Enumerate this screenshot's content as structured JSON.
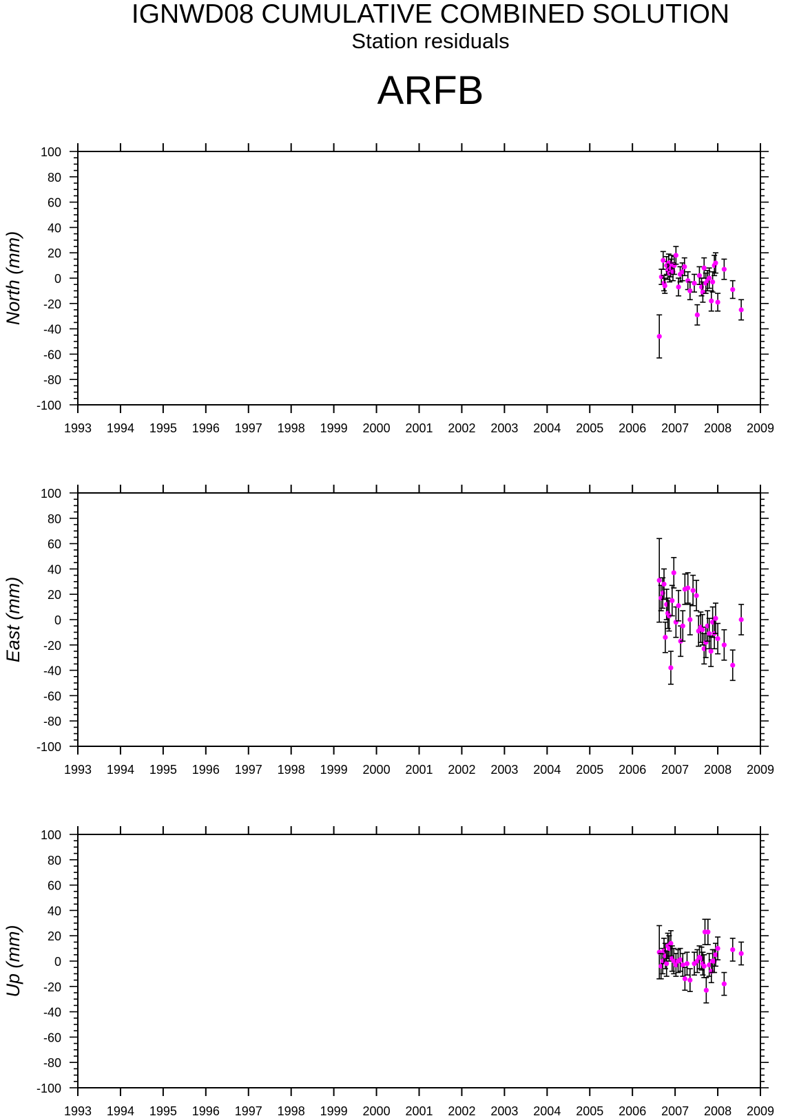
{
  "header": {
    "title": "IGNWD08 CUMULATIVE COMBINED SOLUTION",
    "subtitle": "Station residuals",
    "station": "ARFB"
  },
  "colors": {
    "point": "#ff00ff",
    "errorbar": "#000000",
    "axis": "#000000"
  },
  "chart_data": [
    {
      "type": "scatter",
      "panel": "north",
      "title": "",
      "xlabel": "",
      "ylabel": "North (mm)",
      "xlim": [
        1993,
        2009
      ],
      "ylim": [
        -100,
        100
      ],
      "x_ticks": [
        "1993",
        "1994",
        "1995",
        "1996",
        "1997",
        "1998",
        "1999",
        "2000",
        "2001",
        "2002",
        "2003",
        "2004",
        "2005",
        "2006",
        "2007",
        "2008",
        "2009"
      ],
      "y_ticks": [
        "100",
        "80",
        "60",
        "40",
        "20",
        "0",
        "-20",
        "-40",
        "-60",
        "-80",
        "-100"
      ],
      "grid": false,
      "series": [
        {
          "x": [
            2006.63,
            2006.68,
            2006.72,
            2006.74,
            2006.76,
            2006.8,
            2006.83,
            2006.85,
            2006.87,
            2006.9,
            2006.92,
            2006.95,
            2006.98,
            2007.02,
            2007.08,
            2007.12,
            2007.17,
            2007.22,
            2007.3,
            2007.35,
            2007.45,
            2007.52,
            2007.57,
            2007.62,
            2007.65,
            2007.68,
            2007.72,
            2007.76,
            2007.8,
            2007.85,
            2007.88,
            2007.92,
            2007.95,
            2008.0,
            2008.15,
            2008.35,
            2008.55
          ],
          "y": [
            -46,
            1,
            14,
            -4,
            -6,
            10,
            6,
            12,
            4,
            8,
            11,
            5,
            10,
            18,
            -7,
            3,
            5,
            9,
            -2,
            -10,
            -4,
            -29,
            2,
            -7,
            -11,
            8,
            -4,
            -2,
            0,
            -18,
            -3,
            10,
            12,
            -19,
            7,
            -9,
            -25
          ],
          "err": [
            17,
            6,
            7,
            6,
            6,
            7,
            7,
            7,
            7,
            7,
            7,
            7,
            7,
            7,
            7,
            6,
            7,
            7,
            7,
            7,
            7,
            8,
            7,
            7,
            8,
            8,
            8,
            8,
            8,
            8,
            8,
            8,
            8,
            7,
            8,
            7,
            8
          ]
        }
      ]
    },
    {
      "type": "scatter",
      "panel": "east",
      "title": "",
      "xlabel": "",
      "ylabel": "East (mm)",
      "xlim": [
        1993,
        2009
      ],
      "ylim": [
        -100,
        100
      ],
      "x_ticks": [
        "1993",
        "1994",
        "1995",
        "1996",
        "1997",
        "1998",
        "1999",
        "2000",
        "2001",
        "2002",
        "2003",
        "2004",
        "2005",
        "2006",
        "2007",
        "2008",
        "2009"
      ],
      "y_ticks": [
        "100",
        "80",
        "60",
        "40",
        "20",
        "0",
        "-20",
        "-40",
        "-60",
        "-80",
        "-100"
      ],
      "grid": false,
      "series": [
        {
          "x": [
            2006.63,
            2006.67,
            2006.71,
            2006.74,
            2006.77,
            2006.8,
            2006.83,
            2006.86,
            2006.9,
            2006.93,
            2006.97,
            2007.02,
            2007.08,
            2007.13,
            2007.18,
            2007.23,
            2007.3,
            2007.35,
            2007.42,
            2007.5,
            2007.55,
            2007.6,
            2007.64,
            2007.68,
            2007.72,
            2007.76,
            2007.8,
            2007.84,
            2007.88,
            2007.92,
            2007.95,
            2008.0,
            2008.15,
            2008.35,
            2008.55
          ],
          "y": [
            31,
            17,
            21,
            28,
            -14,
            12,
            5,
            3,
            -38,
            15,
            37,
            -2,
            11,
            -17,
            -5,
            24,
            25,
            0,
            23,
            19,
            -9,
            -6,
            -8,
            -23,
            -18,
            -5,
            -11,
            -25,
            -2,
            -11,
            1,
            -15,
            -20,
            -36,
            0
          ],
          "err": [
            33,
            10,
            12,
            12,
            12,
            12,
            12,
            12,
            13,
            12,
            12,
            12,
            12,
            12,
            12,
            12,
            12,
            12,
            12,
            12,
            12,
            12,
            12,
            12,
            12,
            12,
            12,
            12,
            12,
            12,
            12,
            12,
            12,
            12,
            12
          ]
        }
      ]
    },
    {
      "type": "scatter",
      "panel": "up",
      "title": "",
      "xlabel": "",
      "ylabel": "Up (mm)",
      "xlim": [
        1993,
        2009
      ],
      "ylim": [
        -100,
        100
      ],
      "x_ticks": [
        "1993",
        "1994",
        "1995",
        "1996",
        "1997",
        "1998",
        "1999",
        "2000",
        "2001",
        "2002",
        "2003",
        "2004",
        "2005",
        "2006",
        "2007",
        "2008",
        "2009"
      ],
      "y_ticks": [
        "100",
        "80",
        "60",
        "40",
        "20",
        "0",
        "-20",
        "-40",
        "-60",
        "-80",
        "-100"
      ],
      "grid": false,
      "series": [
        {
          "x": [
            2006.63,
            2006.67,
            2006.71,
            2006.74,
            2006.77,
            2006.8,
            2006.83,
            2006.86,
            2006.9,
            2006.93,
            2006.97,
            2007.02,
            2007.07,
            2007.12,
            2007.18,
            2007.23,
            2007.28,
            2007.35,
            2007.45,
            2007.52,
            2007.57,
            2007.62,
            2007.65,
            2007.68,
            2007.7,
            2007.73,
            2007.77,
            2007.8,
            2007.85,
            2007.88,
            2007.92,
            2007.95,
            2008.0,
            2008.15,
            2008.35,
            2008.55
          ],
          "y": [
            7,
            -4,
            0,
            8,
            4,
            -2,
            12,
            10,
            14,
            2,
            0,
            -3,
            0,
            1,
            -3,
            -14,
            -2,
            -15,
            -2,
            0,
            3,
            2,
            -2,
            -4,
            23,
            -23,
            23,
            -3,
            -8,
            0,
            0,
            5,
            10,
            -18,
            9,
            6
          ],
          "err": [
            21,
            10,
            10,
            10,
            10,
            10,
            10,
            10,
            10,
            10,
            10,
            9,
            9,
            9,
            9,
            9,
            9,
            9,
            9,
            9,
            9,
            9,
            9,
            9,
            10,
            10,
            10,
            9,
            9,
            9,
            9,
            9,
            9,
            9,
            9,
            9
          ]
        }
      ]
    }
  ]
}
